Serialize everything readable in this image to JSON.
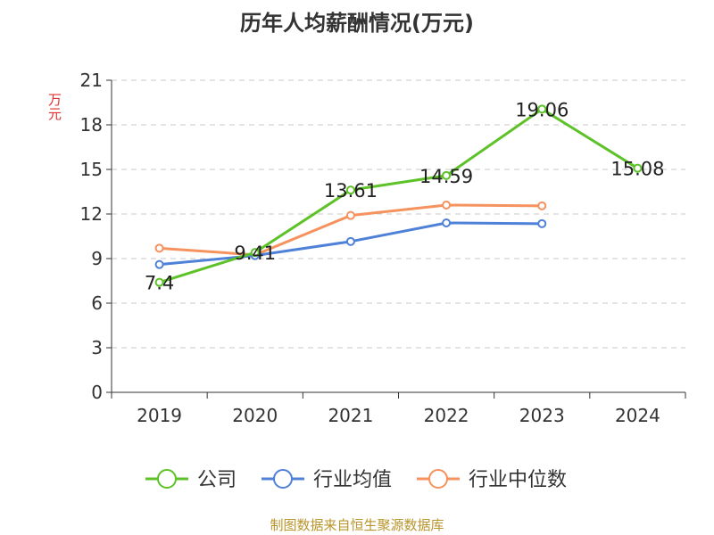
{
  "title": "历年人均薪酬情况(万元)",
  "unit_label": "万元",
  "source": "制图数据来自恒生聚源数据库",
  "chart_data": {
    "type": "line",
    "title": "历年人均薪酬情况(万元)",
    "ylabel": "万元",
    "xlabel": "",
    "categories": [
      "2019",
      "2020",
      "2021",
      "2022",
      "2023",
      "2024"
    ],
    "ylim": [
      0,
      21
    ],
    "yticks": [
      0,
      3,
      6,
      9,
      12,
      15,
      18,
      21
    ],
    "grid": true,
    "legend_position": "bottom",
    "series": [
      {
        "name": "公司",
        "color": "#5dc227",
        "values": [
          7.4,
          9.41,
          13.61,
          14.59,
          19.06,
          15.08
        ],
        "labels": [
          "7.4",
          "9.41",
          "13.61",
          "14.59",
          "19.06",
          "15.08"
        ]
      },
      {
        "name": "行业均值",
        "color": "#4f81d9",
        "values": [
          8.6,
          9.2,
          10.15,
          11.4,
          11.35,
          null
        ]
      },
      {
        "name": "行业中位数",
        "color": "#f5925e",
        "values": [
          9.7,
          9.25,
          11.9,
          12.6,
          12.55,
          null
        ]
      }
    ]
  }
}
